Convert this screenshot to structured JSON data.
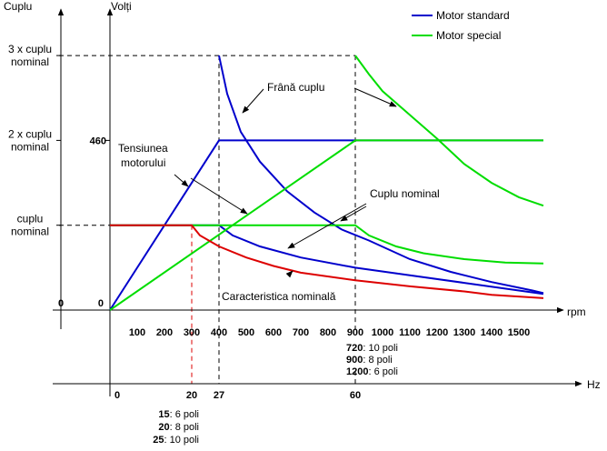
{
  "chart_data": {
    "type": "line",
    "title": "",
    "y_axis_labels": {
      "torque": "Cuplu",
      "voltage": "Volți",
      "torque_ticks": [
        {
          "lines": [
            "3 x cuplu",
            "nominal"
          ],
          "value": 3
        },
        {
          "lines": [
            "2 x cuplu",
            "nominal"
          ],
          "value": 2
        },
        {
          "lines": [
            "cuplu",
            "nominal"
          ],
          "value": 1
        },
        {
          "lines": [
            "0"
          ],
          "value": 0
        }
      ],
      "voltage_ticks": [
        {
          "label": "460",
          "value": 460
        },
        {
          "label": "0",
          "value": 0
        }
      ]
    },
    "x_axis_rpm": {
      "unit": "rpm",
      "range": [
        0,
        1600
      ],
      "ticks": [
        "100",
        "200",
        "300",
        "400",
        "500",
        "600",
        "700",
        "800",
        "900",
        "1000",
        "1100",
        "1200",
        "1300",
        "1400",
        "1500"
      ],
      "pole_notes": [
        {
          "value": "720",
          "text": ": 10 poli"
        },
        {
          "value": "900",
          "text": ":   8 poli"
        },
        {
          "value": "1200",
          "text": ":  6 poli"
        }
      ]
    },
    "x_axis_hz": {
      "unit": "Hz",
      "ticks": [
        {
          "label": "0",
          "value": 0
        },
        {
          "label": "20",
          "value": 20
        },
        {
          "label": "27",
          "value": 27
        },
        {
          "label": "60",
          "value": 60
        }
      ],
      "pole_notes": [
        {
          "value": "15",
          "text": ":  6 poli"
        },
        {
          "value": "20",
          "text": ":  8 poli"
        },
        {
          "value": "25",
          "text": ": 10 poli"
        }
      ]
    },
    "legend": {
      "position": "top-right",
      "items": [
        {
          "label": "Motor standard",
          "color": "#0000cc"
        },
        {
          "label": "Motor special",
          "color": "#00dd00"
        }
      ]
    },
    "annotations": {
      "brake_torque": "Frână cuplu",
      "motor_voltage": [
        "Tensiunea",
        "motorului"
      ],
      "nominal_torque": "Cuplu nominal",
      "nominal_characteristic": "Caracteristica nominală"
    },
    "series": [
      {
        "key": "std_brake",
        "color": "#0000cc",
        "points": [
          [
            400,
            3
          ],
          [
            430,
            2.55
          ],
          [
            480,
            2.1
          ],
          [
            550,
            1.75
          ],
          [
            650,
            1.4
          ],
          [
            750,
            1.15
          ],
          [
            850,
            0.95
          ],
          [
            950,
            0.82
          ],
          [
            1100,
            0.6
          ],
          [
            1250,
            0.45
          ],
          [
            1400,
            0.33
          ],
          [
            1550,
            0.23
          ],
          [
            1590,
            0.2
          ]
        ]
      },
      {
        "key": "std_voltage",
        "color": "#0000cc",
        "points": [
          [
            0,
            0
          ],
          [
            400,
            460
          ],
          [
            1590,
            460
          ]
        ],
        "axis": "voltage"
      },
      {
        "key": "std_torque",
        "color": "#0000cc",
        "points": [
          [
            0,
            1
          ],
          [
            400,
            1
          ],
          [
            450,
            0.88
          ],
          [
            550,
            0.75
          ],
          [
            700,
            0.62
          ],
          [
            900,
            0.5
          ],
          [
            1100,
            0.41
          ],
          [
            1300,
            0.32
          ],
          [
            1500,
            0.23
          ],
          [
            1590,
            0.19
          ]
        ]
      },
      {
        "key": "spec_brake",
        "color": "#00dd00",
        "points": [
          [
            900,
            3
          ],
          [
            950,
            2.78
          ],
          [
            1000,
            2.58
          ],
          [
            1100,
            2.3
          ],
          [
            1200,
            2.02
          ],
          [
            1300,
            1.72
          ],
          [
            1400,
            1.5
          ],
          [
            1500,
            1.33
          ],
          [
            1590,
            1.23
          ]
        ]
      },
      {
        "key": "spec_voltage",
        "color": "#00dd00",
        "points": [
          [
            0,
            0
          ],
          [
            900,
            460
          ],
          [
            1590,
            460
          ]
        ],
        "axis": "voltage"
      },
      {
        "key": "spec_torque",
        "color": "#00dd00",
        "points": [
          [
            0,
            1
          ],
          [
            900,
            1
          ],
          [
            950,
            0.88
          ],
          [
            1050,
            0.75
          ],
          [
            1150,
            0.67
          ],
          [
            1300,
            0.6
          ],
          [
            1450,
            0.56
          ],
          [
            1590,
            0.55
          ]
        ]
      },
      {
        "key": "nominal_char",
        "color": "#dd0000",
        "points": [
          [
            0,
            1
          ],
          [
            300,
            1
          ],
          [
            330,
            0.88
          ],
          [
            400,
            0.75
          ],
          [
            500,
            0.62
          ],
          [
            600,
            0.52
          ],
          [
            700,
            0.44
          ],
          [
            900,
            0.35
          ],
          [
            1100,
            0.28
          ],
          [
            1300,
            0.22
          ],
          [
            1400,
            0.18
          ],
          [
            1590,
            0.14
          ]
        ]
      }
    ]
  }
}
